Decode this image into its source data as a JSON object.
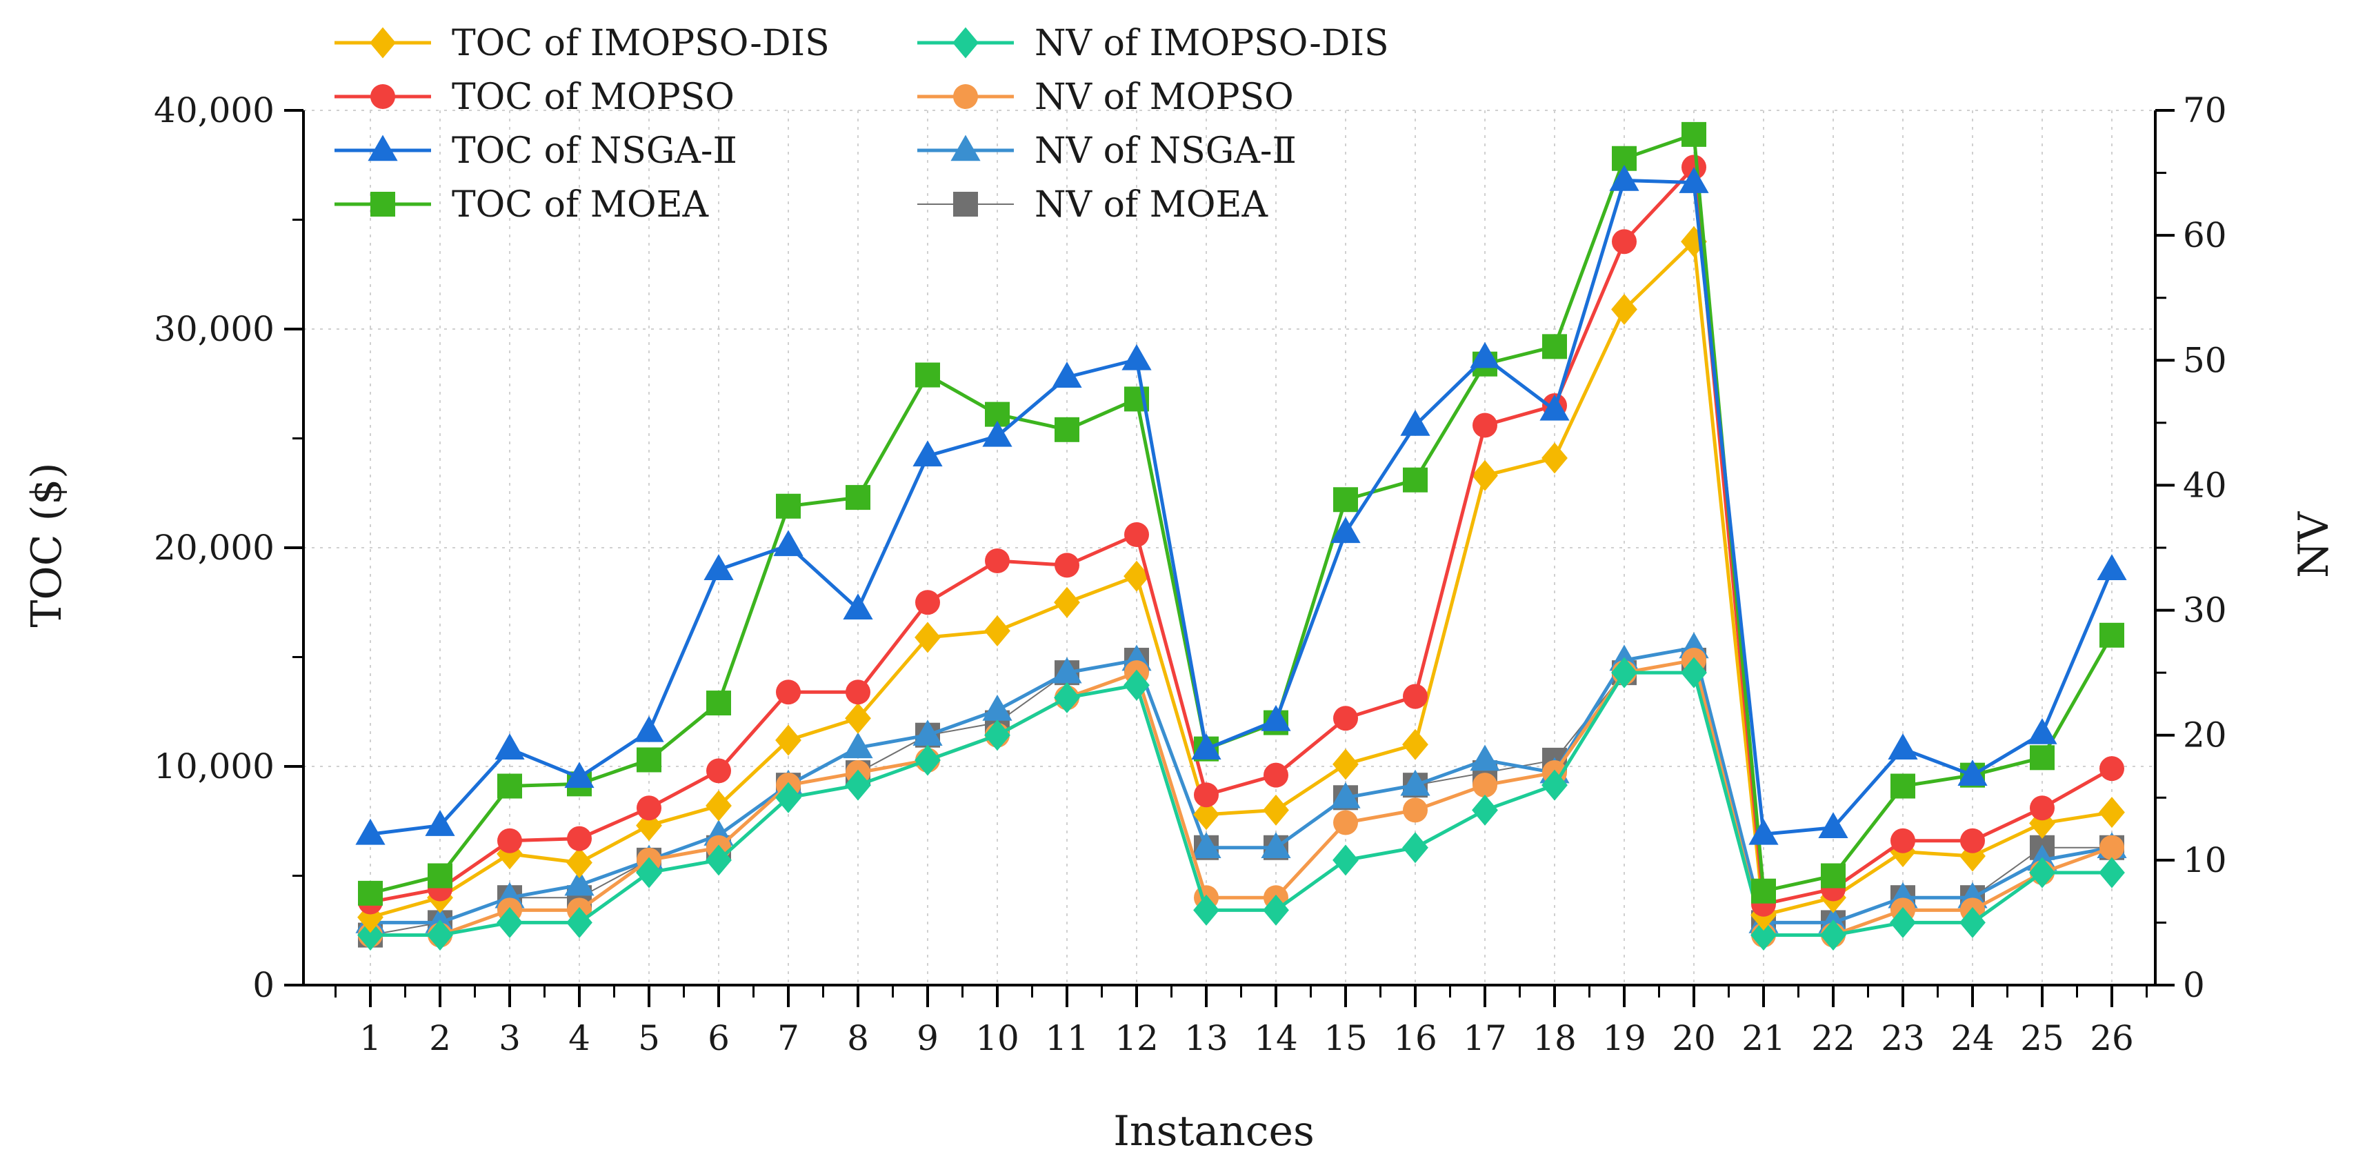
{
  "chart_data": {
    "type": "line",
    "title": "",
    "xlabel": "Instances",
    "ylabel": "TOC ($)",
    "y2label": "NV",
    "ylim": [
      0,
      40000
    ],
    "y2lim": [
      0,
      70
    ],
    "grid": true,
    "legend_position": "top-left",
    "categories": [
      "1",
      "2",
      "3",
      "4",
      "5",
      "6",
      "7",
      "8",
      "9",
      "10",
      "11",
      "12",
      "13",
      "14",
      "15",
      "16",
      "17",
      "18",
      "19",
      "20",
      "21",
      "22",
      "23",
      "24",
      "25",
      "26"
    ],
    "y_ticks": [
      "0",
      "10,000",
      "20,000",
      "30,000",
      "40,000"
    ],
    "y_tick_values": [
      0,
      10000,
      20000,
      30000,
      40000
    ],
    "y2_ticks": [
      "0",
      "10",
      "20",
      "30",
      "40",
      "50",
      "60",
      "70"
    ],
    "y2_tick_values": [
      0,
      10,
      20,
      30,
      40,
      50,
      60,
      70
    ],
    "series": [
      {
        "name": "TOC of IMOPSO-DIS",
        "axis": "left",
        "color": "#f5b800",
        "marker": "diamond",
        "values": [
          3100,
          4000,
          6000,
          5600,
          7300,
          8200,
          11200,
          12200,
          15900,
          16200,
          17500,
          18700,
          7800,
          8000,
          10100,
          11000,
          23300,
          24100,
          30900,
          34000,
          3200,
          4000,
          6100,
          5900,
          7400,
          7900
        ]
      },
      {
        "name": "TOC of MOPSO",
        "axis": "left",
        "color": "#f2403c",
        "marker": "circle",
        "values": [
          3800,
          4400,
          6600,
          6700,
          8100,
          9800,
          13400,
          13400,
          17500,
          19400,
          19200,
          20600,
          8700,
          9600,
          12200,
          13200,
          25600,
          26500,
          34000,
          37400,
          3700,
          4400,
          6600,
          6600,
          8100,
          9900
        ]
      },
      {
        "name": "TOC of NSGA-Ⅱ",
        "axis": "left",
        "color": "#1a6fd8",
        "marker": "triangle",
        "values": [
          6900,
          7300,
          10800,
          9500,
          11600,
          19000,
          20100,
          17200,
          24200,
          25100,
          27800,
          28600,
          10800,
          12100,
          20700,
          25600,
          28700,
          26300,
          36800,
          36700,
          6900,
          7200,
          10800,
          9600,
          11500,
          19000
        ]
      },
      {
        "name": "TOC of MOEA",
        "axis": "left",
        "color": "#3cb41e",
        "marker": "square",
        "values": [
          4200,
          5000,
          9100,
          9200,
          10300,
          12900,
          21900,
          22300,
          27900,
          26100,
          25400,
          26800,
          10800,
          12000,
          22200,
          23100,
          28400,
          29200,
          37800,
          38900,
          4300,
          5000,
          9100,
          9600,
          10400,
          16000
        ]
      },
      {
        "name": "NV of IMOPSO-DIS",
        "axis": "right",
        "color": "#1ccc96",
        "marker": "diamond",
        "values": [
          4,
          4,
          5,
          5,
          9,
          10,
          15,
          16,
          18,
          20,
          23,
          24,
          6,
          6,
          10,
          11,
          14,
          16,
          25,
          25,
          4,
          4,
          5,
          5,
          9,
          9
        ]
      },
      {
        "name": "NV of MOPSO",
        "axis": "right",
        "color": "#f5994a",
        "marker": "circle",
        "values": [
          4,
          4,
          6,
          6,
          10,
          11,
          16,
          17,
          18,
          20,
          23,
          25,
          7,
          7,
          13,
          14,
          16,
          17,
          25,
          26,
          4,
          4,
          6,
          6,
          9,
          11
        ]
      },
      {
        "name": "NV of NSGA-Ⅱ",
        "axis": "right",
        "color": "#3a8fd0",
        "marker": "triangle",
        "values": [
          5,
          5,
          7,
          8,
          10,
          12,
          16,
          19,
          20,
          22,
          25,
          26,
          11,
          11,
          15,
          16,
          18,
          17,
          26,
          27,
          5,
          5,
          7,
          7,
          10,
          11
        ]
      },
      {
        "name": "NV of MOEA",
        "axis": "right",
        "color": "#707070",
        "marker": "square",
        "values": [
          4,
          5,
          7,
          7,
          10,
          11,
          16,
          17,
          20,
          21,
          25,
          26,
          11,
          11,
          15,
          16,
          17,
          18,
          25,
          26,
          5,
          5,
          7,
          7,
          11,
          11
        ]
      }
    ]
  }
}
